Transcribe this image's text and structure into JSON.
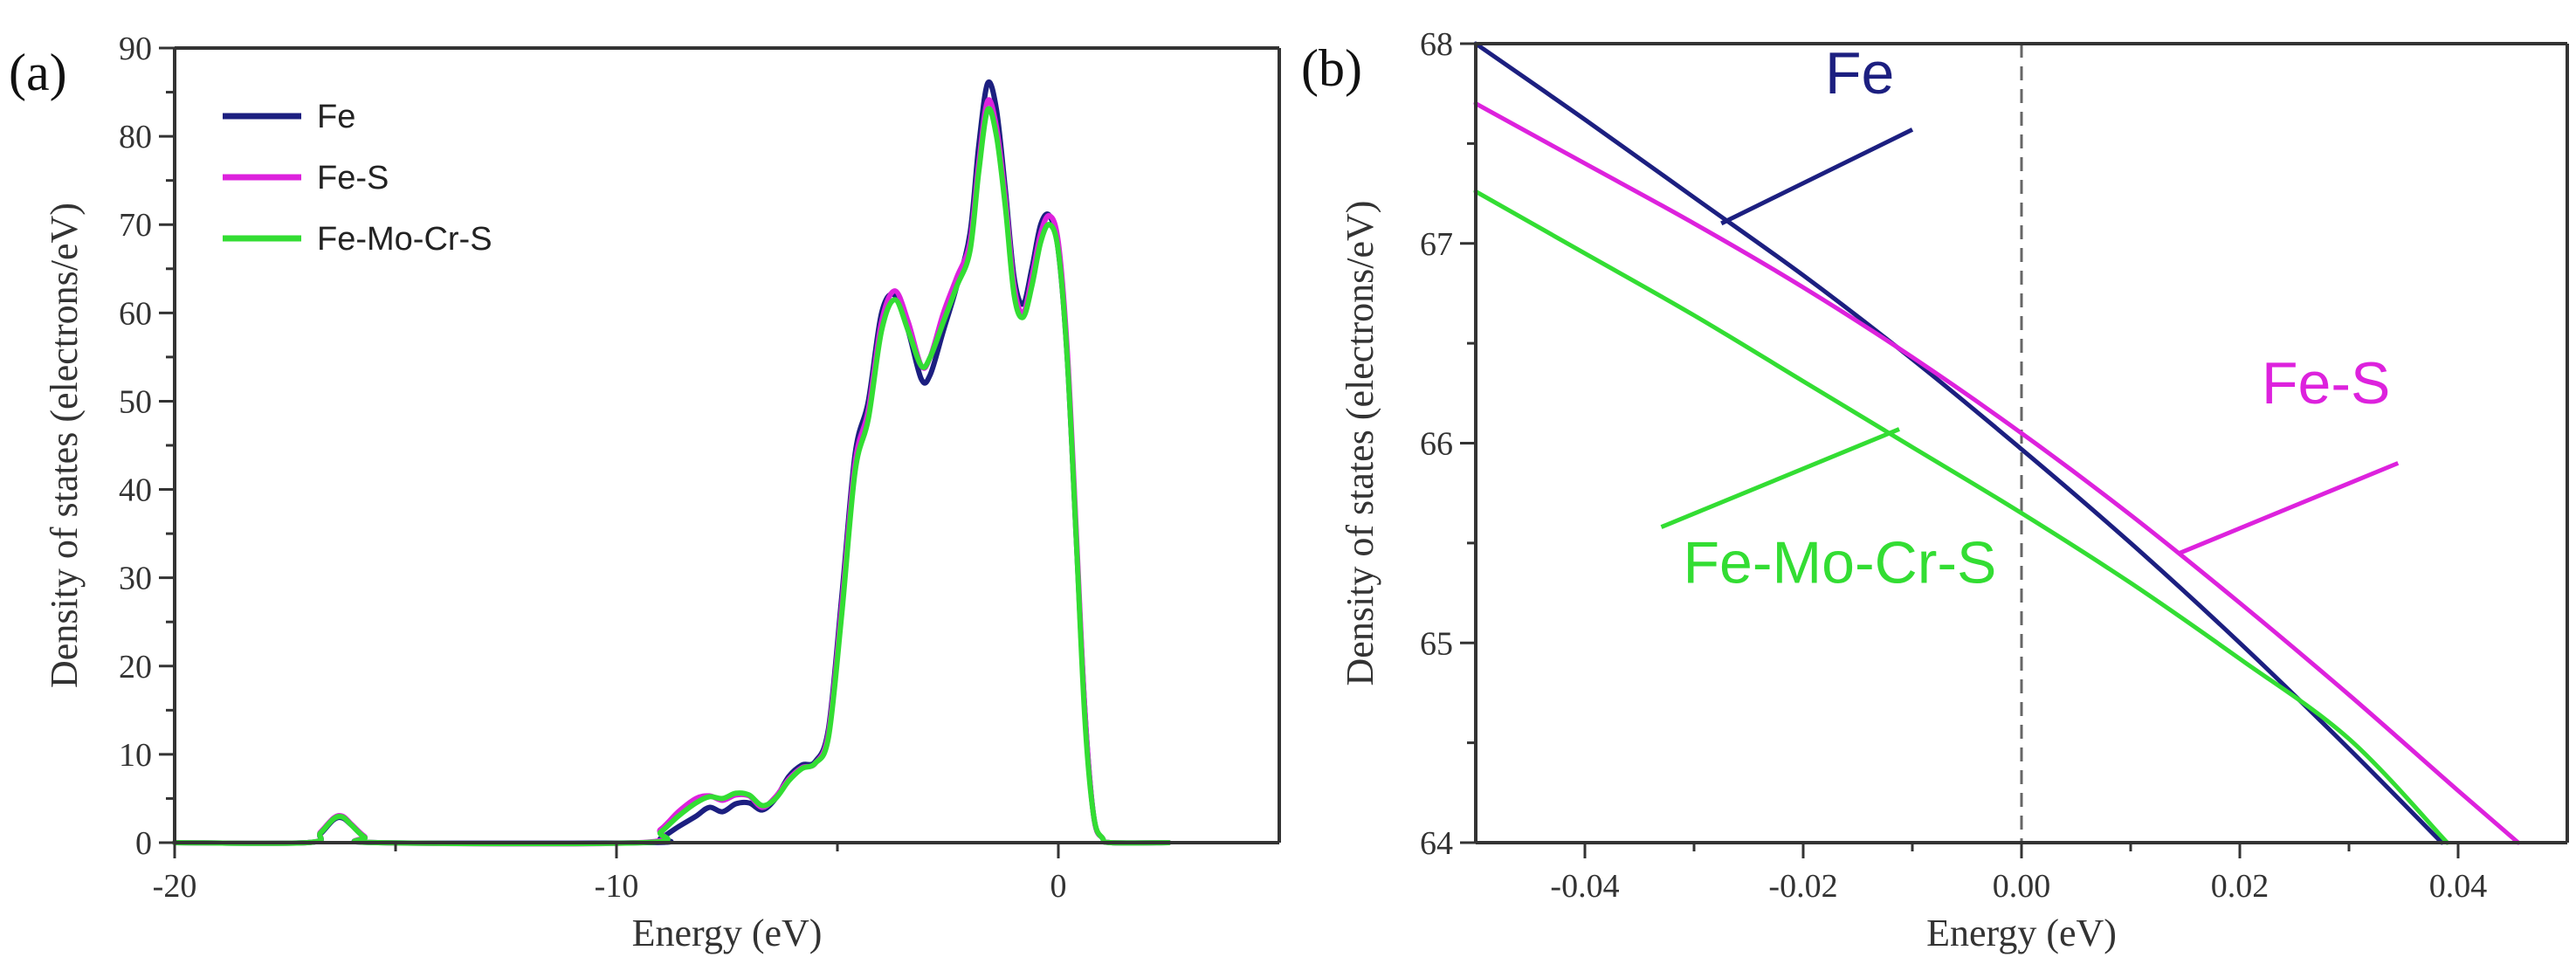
{
  "figure": {
    "panels": [
      "(a)",
      "(b)"
    ]
  },
  "colors": {
    "Fe": "#1c1f80",
    "Fe-S": "#dd22dd",
    "Fe-Mo-Cr-S": "#33dd33",
    "axis": "#333333",
    "dash": "#666666"
  },
  "chart_data": [
    {
      "type": "line",
      "panel_label": "(a)",
      "title": "",
      "xlabel": "Energy (eV)",
      "ylabel": "Density of states (electrons/eV)",
      "xlim": [
        -20,
        5
      ],
      "ylim": [
        0,
        90
      ],
      "x_ticks": [
        -20,
        -10,
        0
      ],
      "y_ticks": [
        0,
        10,
        20,
        30,
        40,
        50,
        60,
        70,
        80,
        90
      ],
      "legend": {
        "position": "top-left",
        "entries": [
          "Fe",
          "Fe-S",
          "Fe-Mo-Cr-S"
        ]
      },
      "series": [
        {
          "name": "Fe",
          "x": [
            -20,
            -17,
            -16.7,
            -16.4,
            -16.2,
            -16.0,
            -15.7,
            -15.4,
            -9.3,
            -9.0,
            -8.6,
            -8.2,
            -7.9,
            -7.6,
            -7.3,
            -7.0,
            -6.7,
            -6.4,
            -6.1,
            -5.8,
            -5.5,
            -5.2,
            -4.9,
            -4.6,
            -4.3,
            -4.0,
            -3.7,
            -3.4,
            -3.1,
            -2.9,
            -2.6,
            -2.3,
            -2.0,
            -1.8,
            -1.6,
            -1.4,
            -1.2,
            -1.0,
            -0.8,
            -0.6,
            -0.4,
            -0.2,
            0.0,
            0.2,
            0.4,
            0.6,
            0.8,
            1.0,
            1.2,
            2.5
          ],
          "y": [
            0,
            0,
            1.0,
            2.6,
            2.8,
            2.0,
            0.6,
            0,
            0,
            0.5,
            1.8,
            3.0,
            4.0,
            3.5,
            4.4,
            4.5,
            3.7,
            5.0,
            7.5,
            8.8,
            9.2,
            13,
            28,
            44,
            50,
            60,
            62,
            58,
            52.5,
            53,
            58,
            63,
            69,
            79,
            86,
            83,
            74,
            64,
            61,
            65,
            70,
            71,
            67,
            55,
            35,
            15,
            3,
            0.5,
            0,
            0
          ]
        },
        {
          "name": "Fe-S",
          "x": [
            -20,
            -17,
            -16.7,
            -16.4,
            -16.2,
            -16.0,
            -15.7,
            -15.4,
            -9.5,
            -9.0,
            -8.6,
            -8.2,
            -7.9,
            -7.6,
            -7.3,
            -7.0,
            -6.7,
            -6.4,
            -6.1,
            -5.8,
            -5.5,
            -5.2,
            -4.9,
            -4.6,
            -4.3,
            -4.0,
            -3.7,
            -3.4,
            -3.1,
            -2.9,
            -2.6,
            -2.3,
            -2.0,
            -1.8,
            -1.6,
            -1.4,
            -1.2,
            -1.0,
            -0.8,
            -0.6,
            -0.4,
            -0.2,
            0.0,
            0.2,
            0.4,
            0.6,
            0.8,
            1.0,
            1.2,
            2.5
          ],
          "y": [
            0,
            0,
            1.2,
            2.8,
            3.0,
            2.1,
            0.7,
            0,
            0,
            1.5,
            3.5,
            5.0,
            5.3,
            4.8,
            5.4,
            5.3,
            4.0,
            5.2,
            7.2,
            8.5,
            9.0,
            12.5,
            27,
            43,
            49,
            59,
            62.5,
            59,
            54,
            55,
            60,
            64,
            68,
            77,
            84,
            81,
            73,
            63,
            60,
            64,
            69,
            71,
            68,
            56,
            36,
            15,
            3,
            0.5,
            0,
            0
          ]
        },
        {
          "name": "Fe-Mo-Cr-S",
          "x": [
            -20,
            -17,
            -16.7,
            -16.4,
            -16.2,
            -16.0,
            -15.7,
            -15.4,
            -9.4,
            -9.0,
            -8.6,
            -8.2,
            -7.9,
            -7.6,
            -7.3,
            -7.0,
            -6.7,
            -6.4,
            -6.1,
            -5.8,
            -5.5,
            -5.2,
            -4.9,
            -4.6,
            -4.3,
            -4.0,
            -3.7,
            -3.4,
            -3.1,
            -2.9,
            -2.6,
            -2.3,
            -2.0,
            -1.8,
            -1.6,
            -1.4,
            -1.2,
            -1.0,
            -0.8,
            -0.6,
            -0.4,
            -0.2,
            0.0,
            0.2,
            0.4,
            0.6,
            0.8,
            1.0,
            1.2,
            2.5
          ],
          "y": [
            0,
            0,
            1.1,
            2.7,
            2.9,
            2.0,
            0.6,
            0,
            0,
            1.2,
            3.0,
            4.5,
            5.2,
            5.0,
            5.6,
            5.4,
            4.2,
            5.0,
            7.0,
            8.4,
            9.0,
            12,
            26,
            42,
            48,
            58,
            61.5,
            58,
            54,
            55,
            59,
            63,
            67,
            76,
            83,
            80,
            72,
            62,
            59.5,
            63,
            68,
            70,
            67,
            55,
            35,
            14,
            3,
            0.5,
            0,
            0
          ]
        }
      ]
    },
    {
      "type": "line",
      "panel_label": "(b)",
      "title": "",
      "xlabel": "Energy (eV)",
      "ylabel": "Density of states (electrons/eV)",
      "xlim": [
        -0.05,
        0.05
      ],
      "ylim": [
        64,
        68
      ],
      "x_ticks": [
        -0.04,
        -0.02,
        0.0,
        0.02,
        0.04
      ],
      "x_tick_labels": [
        "-0.04",
        "-0.02",
        "0.00",
        "0.02",
        "0.04"
      ],
      "y_ticks": [
        64,
        65,
        66,
        67,
        68
      ],
      "reference_line": {
        "x": 0.0,
        "style": "dashed"
      },
      "series": [
        {
          "name": "Fe",
          "x": [
            -0.05,
            -0.04,
            -0.03,
            -0.02,
            -0.01,
            0.0,
            0.01,
            0.02,
            0.03,
            0.0385
          ],
          "y": [
            68.0,
            67.62,
            67.23,
            66.84,
            66.42,
            65.97,
            65.5,
            65.0,
            64.47,
            64.0
          ]
        },
        {
          "name": "Fe-S",
          "x": [
            -0.05,
            -0.04,
            -0.03,
            -0.02,
            -0.01,
            0.0,
            0.01,
            0.02,
            0.03,
            0.04,
            0.0455
          ],
          "y": [
            67.7,
            67.4,
            67.1,
            66.78,
            66.43,
            66.05,
            65.64,
            65.2,
            64.74,
            64.26,
            64.0
          ]
        },
        {
          "name": "Fe-Mo-Cr-S",
          "x": [
            -0.05,
            -0.04,
            -0.03,
            -0.02,
            -0.01,
            0.0,
            0.01,
            0.02,
            0.03,
            0.039
          ],
          "y": [
            67.26,
            66.95,
            66.64,
            66.31,
            65.98,
            65.65,
            65.3,
            64.92,
            64.52,
            64.0
          ]
        }
      ],
      "annotations": [
        {
          "text": "Fe",
          "series": "Fe",
          "text_at": [
            -0.018,
            67.75
          ],
          "line_from": [
            -0.01,
            67.57
          ],
          "line_to": [
            -0.0275,
            67.1
          ]
        },
        {
          "text": "Fe-S",
          "series": "Fe-S",
          "text_at": [
            0.022,
            66.2
          ],
          "line_from": [
            0.0345,
            65.9
          ],
          "line_to": [
            0.0145,
            65.45
          ]
        },
        {
          "text": "Fe-Mo-Cr-S",
          "series": "Fe-Mo-Cr-S",
          "text_at": [
            -0.031,
            65.3
          ],
          "line_from": [
            -0.033,
            65.58
          ],
          "line_to": [
            -0.0112,
            66.07
          ]
        }
      ]
    }
  ]
}
